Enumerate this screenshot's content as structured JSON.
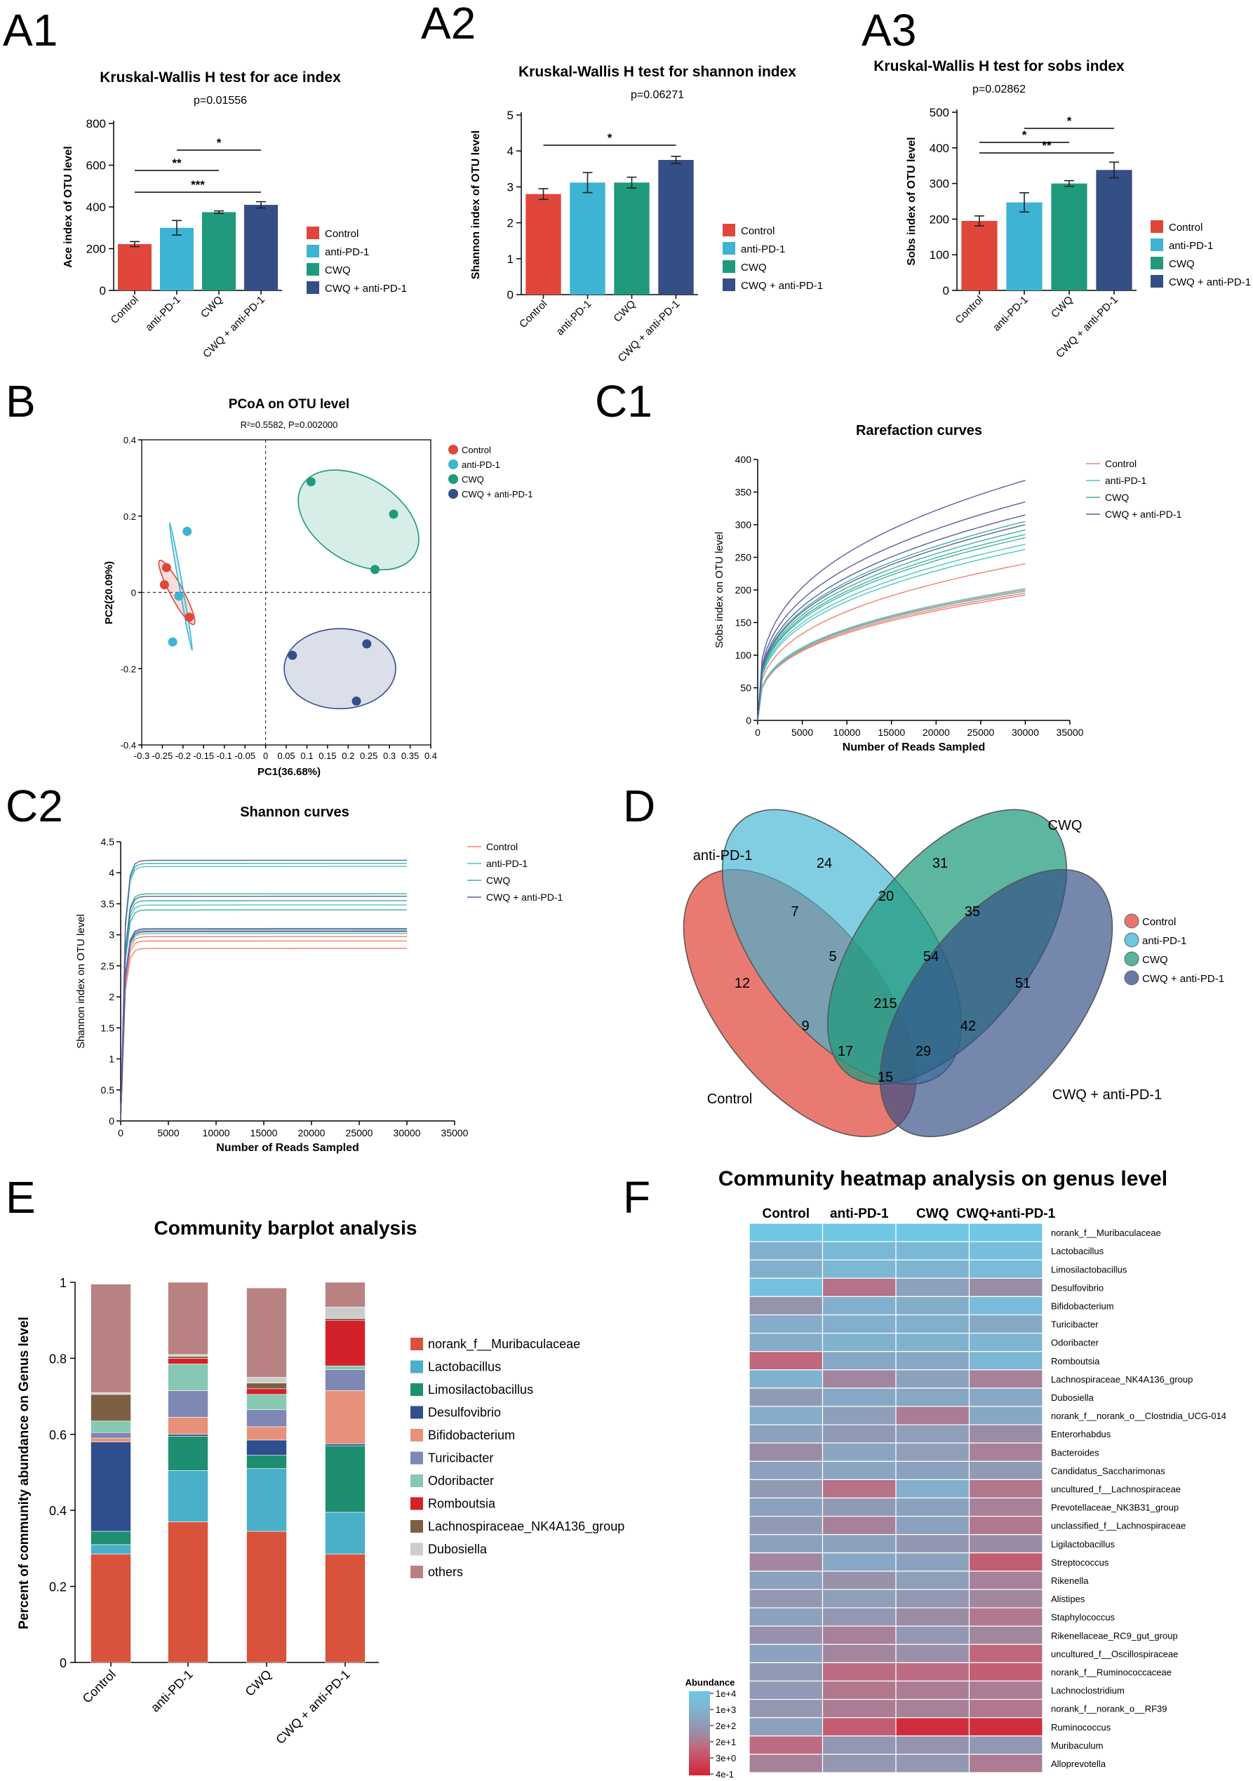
{
  "panel_labels": {
    "a1": "A1",
    "a2": "A2",
    "a3": "A3",
    "b": "B",
    "c1": "C1",
    "c2": "C2",
    "d": "D",
    "e": "E",
    "f": "F"
  },
  "colors": {
    "control": "#E0463A",
    "antipd1": "#3DB4D3",
    "cwq": "#1F9A7C",
    "combo": "#344E86"
  },
  "groups": [
    "Control",
    "anti-PD-1",
    "CWQ",
    "CWQ + anti-PD-1"
  ],
  "chart_data": [
    {
      "id": "A1",
      "type": "bar",
      "title": "Kruskal-Wallis H test for ace index",
      "subtitle": "p=0.01556",
      "ylabel": "Ace index of OTU level",
      "ylim": [
        0,
        800
      ],
      "yticks": [
        "0",
        "200",
        "400",
        "600",
        "800"
      ],
      "categories": [
        "Control",
        "anti-PD-1",
        "CWQ",
        "CWQ + anti-PD-1"
      ],
      "values": [
        222,
        300,
        375,
        410
      ],
      "errors": [
        12,
        35,
        6,
        15
      ],
      "significance": [
        {
          "from": 1,
          "to": 3,
          "label": "*"
        },
        {
          "from": 0,
          "to": 2,
          "label": "**"
        },
        {
          "from": 0,
          "to": 3,
          "label": "***"
        }
      ],
      "legend": [
        "Control",
        "anti-PD-1",
        "CWQ",
        "CWQ + anti-PD-1"
      ]
    },
    {
      "id": "A2",
      "type": "bar",
      "title": "Kruskal-Wallis H test for shannon index",
      "subtitle": "p=0.06271",
      "ylabel": "Shannon index of OTU level",
      "ylim": [
        0,
        5
      ],
      "yticks": [
        "0",
        "1",
        "2",
        "3",
        "4",
        "5"
      ],
      "categories": [
        "Control",
        "anti-PD-1",
        "CWQ",
        "CWQ + anti-PD-1"
      ],
      "values": [
        2.8,
        3.12,
        3.12,
        3.75
      ],
      "errors": [
        0.15,
        0.28,
        0.15,
        0.1
      ],
      "significance": [
        {
          "from": 0,
          "to": 3,
          "label": "*"
        }
      ],
      "legend": [
        "Control",
        "anti-PD-1",
        "CWQ",
        "CWQ + anti-PD-1"
      ]
    },
    {
      "id": "A3",
      "type": "bar",
      "title": "Kruskal-Wallis H test for sobs index",
      "subtitle": "p=0.02862",
      "ylabel": "Sobs index of OTU level",
      "ylim": [
        0,
        500
      ],
      "yticks": [
        "0",
        "100",
        "200",
        "300",
        "400",
        "500"
      ],
      "categories": [
        "Control",
        "anti-PD-1",
        "CWQ",
        "CWQ + anti-PD-1"
      ],
      "values": [
        195,
        247,
        300,
        338
      ],
      "errors": [
        14,
        27,
        8,
        22
      ],
      "significance": [
        {
          "from": 1,
          "to": 3,
          "label": "*"
        },
        {
          "from": 0,
          "to": 2,
          "label": "*"
        },
        {
          "from": 0,
          "to": 3,
          "label": "**"
        }
      ],
      "legend": [
        "Control",
        "anti-PD-1",
        "CWQ",
        "CWQ + anti-PD-1"
      ]
    },
    {
      "id": "B",
      "type": "scatter",
      "title": "PCoA on OTU level",
      "subtitle": "R²=0.5582, P=0.002000",
      "xlabel": "PC1(36.68%)",
      "ylabel": "PC2(20.09%)",
      "xlim": [
        -0.3,
        0.4
      ],
      "ylim": [
        -0.4,
        0.4
      ],
      "xticks": [
        "-0.3",
        "-0.25",
        "-0.2",
        "-0.15",
        "-0.1",
        "-0.05",
        "0",
        "0.05",
        "0.1",
        "0.15",
        "0.2",
        "0.25",
        "0.3",
        "0.35",
        "0.4"
      ],
      "yticks": [
        "-0.4",
        "-0.2",
        "0",
        "0.2",
        "0.4"
      ],
      "series": [
        {
          "name": "Control",
          "points": [
            [
              -0.24,
              0.065
            ],
            [
              -0.245,
              0.02
            ],
            [
              -0.185,
              -0.065
            ]
          ],
          "ellipse": {
            "cx": -0.215,
            "cy": 0.0,
            "rx": 0.016,
            "ry": 0.095,
            "angle": -28
          }
        },
        {
          "name": "anti-PD-1",
          "points": [
            [
              -0.19,
              0.16
            ],
            [
              -0.21,
              -0.01
            ],
            [
              -0.225,
              -0.13
            ]
          ],
          "ellipse": {
            "cx": -0.205,
            "cy": 0.015,
            "rx": 0.004,
            "ry": 0.17,
            "angle": -10
          }
        },
        {
          "name": "CWQ",
          "points": [
            [
              0.11,
              0.29
            ],
            [
              0.31,
              0.205
            ],
            [
              0.265,
              0.06
            ]
          ],
          "ellipse": {
            "cx": 0.225,
            "cy": 0.19,
            "rx": 0.16,
            "ry": 0.11,
            "angle": 32
          }
        },
        {
          "name": "CWQ + anti-PD-1",
          "points": [
            [
              0.065,
              -0.165
            ],
            [
              0.245,
              -0.135
            ],
            [
              0.22,
              -0.285
            ]
          ],
          "ellipse": {
            "cx": 0.18,
            "cy": -0.2,
            "rx": 0.135,
            "ry": 0.105,
            "angle": 0
          }
        }
      ],
      "legend": [
        "Control",
        "anti-PD-1",
        "CWQ",
        "CWQ + anti-PD-1"
      ]
    },
    {
      "id": "C1",
      "type": "line",
      "title": "Rarefaction curves",
      "xlabel": "Number of Reads Sampled",
      "ylabel": "Sobs index on OTU level",
      "xlim": [
        0,
        35000
      ],
      "ylim": [
        0,
        400
      ],
      "xticks": [
        "0",
        "5000",
        "10000",
        "15000",
        "20000",
        "25000",
        "30000",
        "35000"
      ],
      "yticks": [
        "0",
        "50",
        "100",
        "150",
        "200",
        "250",
        "300",
        "350",
        "400"
      ],
      "series": [
        {
          "name": "Control",
          "final": [
            240,
            200,
            195,
            192
          ]
        },
        {
          "name": "anti-PD-1",
          "final": [
            202,
            198,
            270,
            262
          ]
        },
        {
          "name": "CWQ",
          "final": [
            305,
            292,
            285,
            280
          ]
        },
        {
          "name": "CWQ + anti-PD-1",
          "final": [
            368,
            335,
            315,
            300
          ]
        }
      ],
      "legend": [
        "Control",
        "anti-PD-1",
        "CWQ",
        "CWQ + anti-PD-1"
      ]
    },
    {
      "id": "C2",
      "type": "line",
      "title": "Shannon curves",
      "xlabel": "Number of Reads Sampled",
      "ylabel": "Shannon index on OTU level",
      "xlim": [
        0,
        35000
      ],
      "ylim": [
        0,
        4.5
      ],
      "xticks": [
        "0",
        "5000",
        "10000",
        "15000",
        "20000",
        "25000",
        "30000",
        "35000"
      ],
      "yticks": [
        "0",
        "0.5",
        "1",
        "1.5",
        "2",
        "2.5",
        "3",
        "3.5",
        "4",
        "4.5"
      ],
      "series": [
        {
          "name": "Control",
          "final": [
            3.06,
            2.97,
            2.9,
            2.78
          ]
        },
        {
          "name": "anti-PD-1",
          "final": [
            4.1,
            3.48,
            3.02,
            3.08
          ]
        },
        {
          "name": "CWQ",
          "final": [
            4.15,
            3.66,
            3.55,
            3.4
          ]
        },
        {
          "name": "CWQ + anti-PD-1",
          "final": [
            4.2,
            3.62,
            3.1,
            3.05
          ]
        }
      ],
      "legend": [
        "Control",
        "anti-PD-1",
        "CWQ",
        "CWQ + anti-PD-1"
      ]
    },
    {
      "id": "D",
      "type": "venn",
      "set_labels": {
        "anti": "anti-PD-1",
        "cwq": "CWQ",
        "control": "Control",
        "combo": "CWQ + anti-PD-1"
      },
      "regions": [
        {
          "key": "anti_only",
          "value": "24"
        },
        {
          "key": "cwq_only",
          "value": "31"
        },
        {
          "key": "control_only",
          "value": "12"
        },
        {
          "key": "combo_only",
          "value": "51"
        },
        {
          "key": "control_anti",
          "value": "7"
        },
        {
          "key": "anti_cwq",
          "value": "20"
        },
        {
          "key": "cwq_combo",
          "value": "35"
        },
        {
          "key": "control_anti_cwq",
          "value": "5"
        },
        {
          "key": "anti_cwq_combo",
          "value": "54"
        },
        {
          "key": "all",
          "value": "215"
        },
        {
          "key": "control_cwq",
          "value": "9"
        },
        {
          "key": "anti_combo",
          "value": "42"
        },
        {
          "key": "control_cwq_combo",
          "value": "17"
        },
        {
          "key": "control_anti_combo",
          "value": "29"
        },
        {
          "key": "control_combo",
          "value": "15"
        }
      ],
      "legend": [
        "Control",
        "anti-PD-1",
        "CWQ",
        "CWQ + anti-PD-1"
      ]
    },
    {
      "id": "E",
      "type": "stacked_bar",
      "title": "Community barplot analysis",
      "ylabel": "Percent of community abundance on Genus level",
      "ylim": [
        0,
        1
      ],
      "yticks": [
        "0",
        "0.2",
        "0.4",
        "0.6",
        "0.8",
        "1"
      ],
      "categories": [
        "Control",
        "anti-PD-1",
        "CWQ",
        "CWQ + anti-PD-1"
      ],
      "series": [
        {
          "name": "norank_f__Muribaculaceae",
          "values": [
            0.285,
            0.37,
            0.345,
            0.285
          ]
        },
        {
          "name": "Lactobacillus",
          "values": [
            0.025,
            0.135,
            0.165,
            0.11
          ]
        },
        {
          "name": "Limosilactobacillus",
          "values": [
            0.035,
            0.09,
            0.035,
            0.175
          ]
        },
        {
          "name": "Desulfovibrio",
          "values": [
            0.235,
            0.005,
            0.04,
            0.005
          ]
        },
        {
          "name": "Bifidobacterium",
          "values": [
            0.01,
            0.045,
            0.035,
            0.14
          ]
        },
        {
          "name": "Turicibacter",
          "values": [
            0.015,
            0.07,
            0.045,
            0.055
          ]
        },
        {
          "name": "Odoribacter",
          "values": [
            0.03,
            0.07,
            0.04,
            0.01
          ]
        },
        {
          "name": "Romboutsia",
          "values": [
            0.0,
            0.015,
            0.015,
            0.12
          ]
        },
        {
          "name": "Lachnospiraceae_NK4A136_group",
          "values": [
            0.07,
            0.005,
            0.015,
            0.005
          ]
        },
        {
          "name": "Dubosiella",
          "values": [
            0.005,
            0.005,
            0.015,
            0.03
          ]
        },
        {
          "name": "others",
          "values": [
            0.285,
            0.19,
            0.235,
            0.065
          ]
        }
      ]
    },
    {
      "id": "F",
      "type": "heatmap",
      "title": "Community heatmap analysis on genus level",
      "columns": [
        "Control",
        "anti-PD-1",
        "CWQ",
        "CWQ+anti-PD-1"
      ],
      "rows": [
        "norank_f__Muribaculaceae",
        "Lactobacillus",
        "Limosilactobacillus",
        "Desulfovibrio",
        "Bifidobacterium",
        "Turicibacter",
        "Odoribacter",
        "Romboutsia",
        "Lachnospiraceae_NK4A136_group",
        "Dubosiella",
        "norank_f__norank_o__Clostridia_UCG-014",
        "Enterorhabdus",
        "Bacteroides",
        "Candidatus_Saccharimonas",
        "uncultured_f__Lachnospiraceae",
        "Prevotellaceae_NK3B31_group",
        "unclassified_f__Lachnospiraceae",
        "Ligilactobacillus",
        "Streptococcus",
        "Rikenella",
        "Alistipes",
        "Staphylococcus",
        "Rikenellaceae_RC9_gut_group",
        "uncultured_f__Oscillospiraceae",
        "norank_f__Ruminococcaceae",
        "Lachnoclostridium",
        "norank_f__norank_o__RF39",
        "Ruminococcus",
        "Muribaculum",
        "Alloprevotella"
      ],
      "values": [
        [
          4.0,
          4.0,
          4.0,
          4.0
        ],
        [
          3.0,
          3.4,
          3.4,
          3.6
        ],
        [
          3.0,
          3.3,
          3.2,
          3.5
        ],
        [
          3.7,
          1.5,
          2.6,
          2.0
        ],
        [
          2.2,
          3.0,
          2.9,
          3.5
        ],
        [
          2.9,
          3.0,
          3.0,
          2.8
        ],
        [
          2.9,
          3.1,
          3.1,
          3.2
        ],
        [
          1.3,
          2.8,
          2.8,
          3.3
        ],
        [
          3.1,
          1.9,
          2.6,
          1.8
        ],
        [
          2.4,
          2.8,
          2.8,
          2.8
        ],
        [
          2.9,
          2.5,
          1.7,
          2.8
        ],
        [
          2.6,
          2.4,
          2.5,
          2.0
        ],
        [
          2.0,
          2.7,
          2.5,
          1.8
        ],
        [
          2.6,
          2.7,
          2.6,
          2.4
        ],
        [
          2.4,
          1.5,
          3.0,
          1.6
        ],
        [
          2.6,
          2.4,
          2.6,
          1.8
        ],
        [
          2.4,
          1.8,
          2.6,
          1.6
        ],
        [
          2.6,
          2.6,
          2.3,
          2.0
        ],
        [
          1.9,
          2.8,
          2.6,
          1.1
        ],
        [
          2.6,
          2.1,
          2.5,
          1.8
        ],
        [
          2.3,
          2.5,
          2.3,
          1.9
        ],
        [
          2.6,
          2.3,
          2.0,
          1.6
        ],
        [
          2.1,
          1.8,
          2.3,
          1.9
        ],
        [
          2.6,
          1.9,
          2.1,
          1.3
        ],
        [
          2.4,
          1.4,
          1.4,
          1.1
        ],
        [
          2.4,
          1.6,
          1.7,
          1.7
        ],
        [
          2.3,
          1.7,
          1.8,
          1.6
        ],
        [
          2.6,
          1.1,
          0.2,
          0.2
        ],
        [
          1.4,
          2.3,
          2.2,
          2.3
        ],
        [
          1.8,
          2.3,
          2.3,
          1.7
        ]
      ],
      "colorbar_label": "Abundance",
      "colorbar_ticks": [
        "1e+4",
        "1e+3",
        "2e+2",
        "2e+1",
        "3e+0",
        "4e-1"
      ]
    }
  ]
}
